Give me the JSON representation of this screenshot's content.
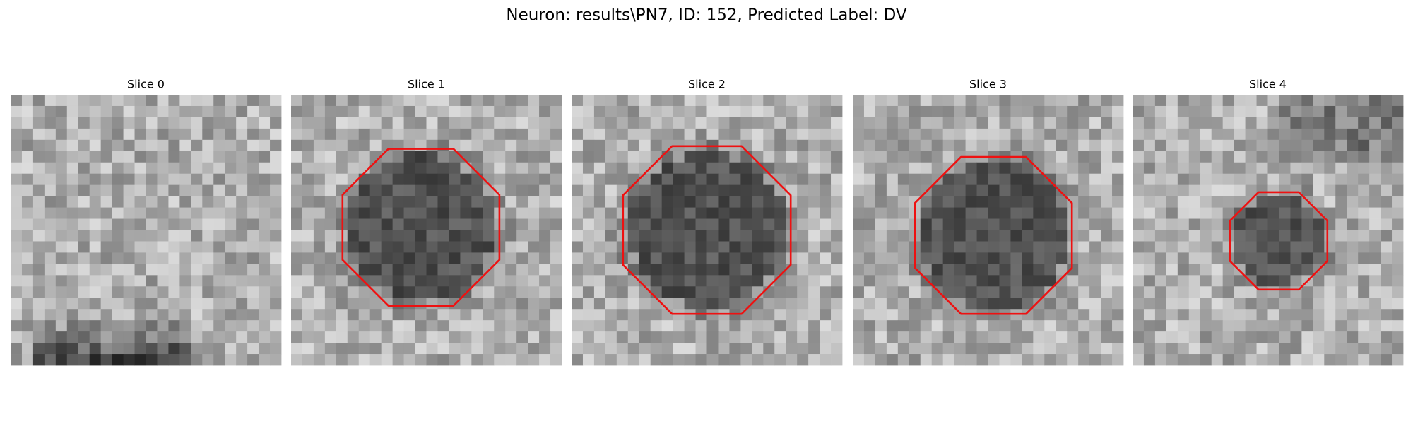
{
  "header": {
    "title": "Neuron: results\\PN7, ID: 152, Predicted Label: DV"
  },
  "panels": [
    {
      "label": "Slice 0"
    },
    {
      "label": "Slice 1"
    },
    {
      "label": "Slice 2"
    },
    {
      "label": "Slice 3"
    },
    {
      "label": "Slice 4"
    }
  ]
}
